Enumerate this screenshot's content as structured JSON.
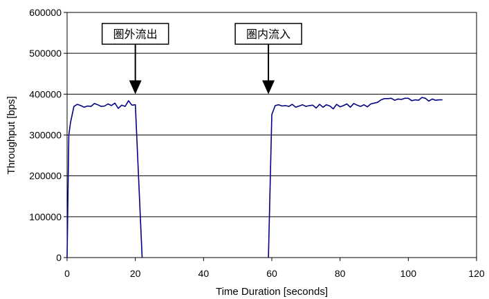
{
  "chart_data": {
    "type": "line",
    "title": "",
    "xlabel": "Time Duration [seconds]",
    "ylabel": "Throughput [bps]",
    "xlim": [
      0,
      120
    ],
    "ylim": [
      0,
      600000
    ],
    "xticks": [
      0,
      20,
      40,
      60,
      80,
      100,
      120
    ],
    "yticks": [
      0,
      100000,
      200000,
      300000,
      400000,
      500000,
      600000
    ],
    "xtick_labels": [
      "0",
      "20",
      "40",
      "60",
      "80",
      "100",
      "120"
    ],
    "ytick_labels": [
      "0",
      "100000",
      "200000",
      "300000",
      "400000",
      "500000",
      "600000"
    ],
    "grid": "horizontal",
    "legend": "none",
    "line_color": "#000080",
    "series": [
      {
        "name": "",
        "x": [
          0,
          0.5,
          1,
          2,
          3,
          4,
          5,
          6,
          7,
          8,
          9,
          10,
          11,
          12,
          13,
          14,
          15,
          16,
          17,
          18,
          19,
          20,
          22
        ],
        "y": [
          0,
          300000,
          330000,
          370000,
          375000,
          372000,
          368000,
          371000,
          370000,
          377000,
          374000,
          370000,
          371000,
          376000,
          372000,
          378000,
          365000,
          373000,
          370000,
          384000,
          373000,
          374000,
          0
        ]
      },
      {
        "name": "",
        "x": [
          59,
          60,
          61,
          62,
          63,
          64,
          65,
          66,
          67,
          68,
          69,
          70,
          71,
          72,
          73,
          74,
          75,
          76,
          77,
          78,
          79,
          80,
          81,
          82,
          83,
          84,
          85,
          86,
          87,
          88,
          89,
          90,
          91,
          92,
          93,
          94,
          95,
          96,
          97,
          98,
          99,
          100,
          101,
          102,
          103,
          104,
          105,
          106,
          107,
          108,
          109,
          110
        ],
        "y": [
          0,
          350000,
          372000,
          374000,
          371000,
          372000,
          370000,
          375000,
          368000,
          371000,
          374000,
          370000,
          372000,
          373000,
          366000,
          375000,
          368000,
          374000,
          371000,
          364000,
          375000,
          369000,
          372000,
          376000,
          368000,
          377000,
          373000,
          370000,
          374000,
          369000,
          376000,
          378000,
          380000,
          386000,
          389000,
          389000,
          390000,
          385000,
          388000,
          387000,
          390000,
          390000,
          384000,
          386000,
          385000,
          392000,
          390000,
          383000,
          388000,
          385000,
          386000,
          386000
        ]
      }
    ],
    "annotations": [
      {
        "text": "圏外流出",
        "x": 20,
        "y": 400000
      },
      {
        "text": "圏内流入",
        "x": 59,
        "y": 400000
      }
    ]
  }
}
